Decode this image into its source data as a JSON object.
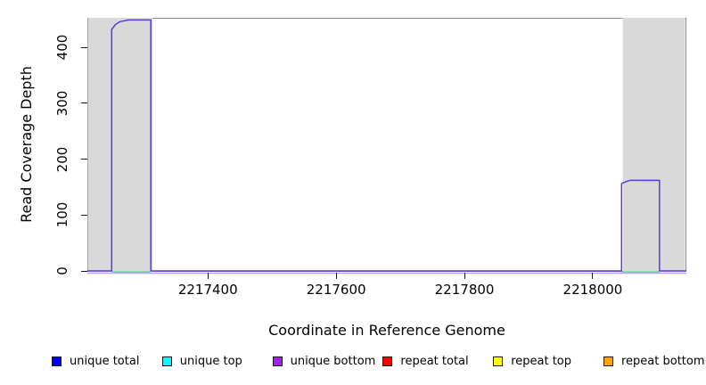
{
  "chart_data": {
    "type": "line",
    "title": "",
    "xlabel": "Coordinate in Reference Genome",
    "ylabel": "Read Coverage Depth",
    "xlim": [
      2217212,
      2218146
    ],
    "ylim": [
      0,
      452
    ],
    "x_ticks": [
      2217400,
      2217600,
      2217800,
      2218000
    ],
    "y_ticks": [
      0,
      100,
      200,
      300,
      400
    ],
    "grid": "off",
    "legend_position": "bottom",
    "shaded_regions": [
      {
        "name": "repeat-region-left",
        "x_start": 2217213,
        "x_end": 2217314,
        "color": "#d9d9d9"
      },
      {
        "name": "repeat-region-right",
        "x_start": 2218047,
        "x_end": 2218144,
        "color": "#d9d9d9"
      }
    ],
    "series": [
      {
        "name": "unique-read-coverage",
        "color": "#5b38e0",
        "points": [
          [
            2217212,
            0
          ],
          [
            2217250,
            0
          ],
          [
            2217250,
            432
          ],
          [
            2217256,
            441
          ],
          [
            2217263,
            446
          ],
          [
            2217276,
            449
          ],
          [
            2217311,
            449
          ],
          [
            2217311,
            0
          ],
          [
            2218045,
            0
          ],
          [
            2218045,
            156
          ],
          [
            2218048,
            158
          ],
          [
            2218053,
            160
          ],
          [
            2218058,
            162
          ],
          [
            2218104,
            162
          ],
          [
            2218104,
            0
          ],
          [
            2218146,
            0
          ]
        ]
      }
    ],
    "baseline_overlays": [
      {
        "name": "zero-baseline-light-purple",
        "type": "light",
        "color": "#b7a6f7",
        "x_start": 2217212,
        "x_end": 2218146
      },
      {
        "name": "zero-baseline-green-left",
        "type": "green",
        "color": "#77d877",
        "x_start": 2217250,
        "x_end": 2217311
      },
      {
        "name": "zero-baseline-green-right",
        "type": "green",
        "color": "#77d877",
        "x_start": 2218045,
        "x_end": 2218104
      }
    ]
  },
  "legend": {
    "items": [
      {
        "label": "unique total",
        "color": "#0000ff"
      },
      {
        "label": "unique top",
        "color": "#00ffff"
      },
      {
        "label": "unique bottom",
        "color": "#a020f0"
      },
      {
        "label": "repeat total",
        "color": "#ff0000"
      },
      {
        "label": "repeat top",
        "color": "#ffff00"
      },
      {
        "label": "repeat bottom",
        "color": "#ffa500"
      }
    ]
  },
  "colors": {
    "plot_box_border": "#8c8c8c",
    "tick_mark": "#1a1a1a",
    "background": "#ffffff"
  }
}
